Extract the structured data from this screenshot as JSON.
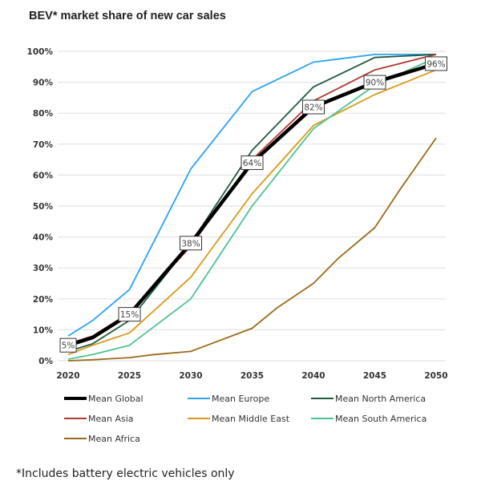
{
  "chart_data": {
    "type": "line",
    "title": "BEV* market share of new car sales",
    "xlabel": "",
    "ylabel": "",
    "xlim": [
      2020,
      2050
    ],
    "ylim": [
      0,
      100
    ],
    "grid": "horizontal",
    "legend_position": "bottom",
    "x_ticks": [
      "2020",
      "2025",
      "2030",
      "2035",
      "2040",
      "2045",
      "2050"
    ],
    "y_ticks": [
      "0%",
      "10%",
      "20%",
      "30%",
      "40%",
      "50%",
      "60%",
      "70%",
      "80%",
      "90%",
      "100%"
    ],
    "series": [
      {
        "name": "Mean Global",
        "color": "#000000",
        "x": [
          2020,
          2022,
          2025,
          2030,
          2035,
          2040,
          2045,
          2050
        ],
        "values": [
          5,
          7.5,
          15,
          38,
          64,
          82,
          90,
          96
        ]
      },
      {
        "name": "Mean Europe",
        "color": "#2aa3f0",
        "x": [
          2020,
          2022,
          2025,
          2030,
          2033,
          2035,
          2040,
          2042,
          2045,
          2050
        ],
        "values": [
          8,
          13,
          23,
          62,
          77,
          87,
          96.5,
          97.5,
          99,
          99
        ]
      },
      {
        "name": "Mean North America",
        "color": "#1f5a3c",
        "x": [
          2020,
          2022,
          2025,
          2030,
          2035,
          2040,
          2045,
          2050
        ],
        "values": [
          3,
          5.5,
          13,
          38,
          68,
          88.5,
          98,
          99
        ]
      },
      {
        "name": "Mean Asia",
        "color": "#b0392f",
        "x": [
          2020,
          2022,
          2025,
          2030,
          2035,
          2040,
          2045,
          2050
        ],
        "values": [
          5.5,
          8,
          15.5,
          37,
          65,
          84,
          94,
          99
        ]
      },
      {
        "name": "Mean Middle East",
        "color": "#d89a1a",
        "x": [
          2020,
          2022,
          2025,
          2030,
          2035,
          2040,
          2045,
          2050
        ],
        "values": [
          2,
          5,
          9,
          27,
          54,
          76,
          86,
          94
        ]
      },
      {
        "name": "Mean South America",
        "color": "#4cc391",
        "x": [
          2020,
          2022,
          2025,
          2030,
          2035,
          2040,
          2045,
          2050
        ],
        "values": [
          0.5,
          2,
          5,
          20,
          50,
          75,
          89,
          98
        ]
      },
      {
        "name": "Mean Africa",
        "color": "#9a6b1a",
        "x": [
          2020,
          2022,
          2025,
          2027,
          2030,
          2032,
          2035,
          2037,
          2040,
          2042,
          2045,
          2047,
          2050
        ],
        "values": [
          0,
          0.3,
          1,
          2,
          3,
          6,
          10.5,
          17,
          25,
          33,
          43,
          55,
          72
        ]
      }
    ],
    "annotations": [
      {
        "series": "Mean Global",
        "x": 2020,
        "y": 5,
        "text": "5%"
      },
      {
        "series": "Mean Global",
        "x": 2025,
        "y": 15,
        "text": "15%"
      },
      {
        "series": "Mean Global",
        "x": 2030,
        "y": 38,
        "text": "38%"
      },
      {
        "series": "Mean Global",
        "x": 2035,
        "y": 64,
        "text": "64%"
      },
      {
        "series": "Mean Global",
        "x": 2040,
        "y": 82,
        "text": "82%"
      },
      {
        "series": "Mean Global",
        "x": 2045,
        "y": 90,
        "text": "90%"
      },
      {
        "series": "Mean Global",
        "x": 2050,
        "y": 96,
        "text": "96%"
      }
    ]
  },
  "footnote": "*Includes battery electric vehicles only"
}
